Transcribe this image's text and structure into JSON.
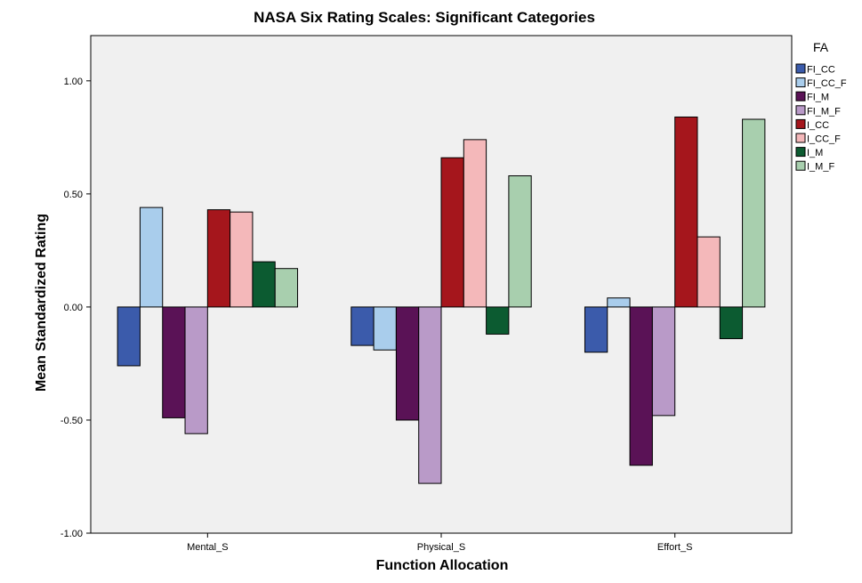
{
  "chart_data": {
    "type": "bar",
    "title": "NASA Six Rating Scales: Significant Categories",
    "xlabel": "Function Allocation",
    "ylabel": "Mean Standardized Rating",
    "categories": [
      "Mental_S",
      "Physical_S",
      "Effort_S"
    ],
    "ylim": [
      -1.0,
      1.2
    ],
    "yticks": [
      -1.0,
      -0.5,
      0.0,
      0.5,
      1.0
    ],
    "ytick_labels": [
      "-1.00",
      "-0.50",
      "0.00",
      "0.50",
      "1.00"
    ],
    "grid": false,
    "legend": {
      "title": "FA",
      "position": "right"
    },
    "series": [
      {
        "name": "FI_CC",
        "color": "#3b5bab",
        "values": [
          -0.26,
          -0.17,
          -0.2
        ]
      },
      {
        "name": "FI_CC_F",
        "color": "#a9cdec",
        "values": [
          0.44,
          -0.19,
          0.04
        ]
      },
      {
        "name": "FI_M",
        "color": "#5a1256",
        "values": [
          -0.49,
          -0.5,
          -0.7
        ]
      },
      {
        "name": "FI_M_F",
        "color": "#b99ac8",
        "values": [
          -0.56,
          -0.78,
          -0.48
        ]
      },
      {
        "name": "I_CC",
        "color": "#a5161c",
        "values": [
          0.43,
          0.66,
          0.84
        ]
      },
      {
        "name": "I_CC_F",
        "color": "#f4b8ba",
        "values": [
          0.42,
          0.74,
          0.31
        ]
      },
      {
        "name": "I_M",
        "color": "#0c5b31",
        "values": [
          0.2,
          -0.12,
          -0.14
        ]
      },
      {
        "name": "I_M_F",
        "color": "#a8cfae",
        "values": [
          0.17,
          0.58,
          0.83
        ]
      }
    ]
  }
}
